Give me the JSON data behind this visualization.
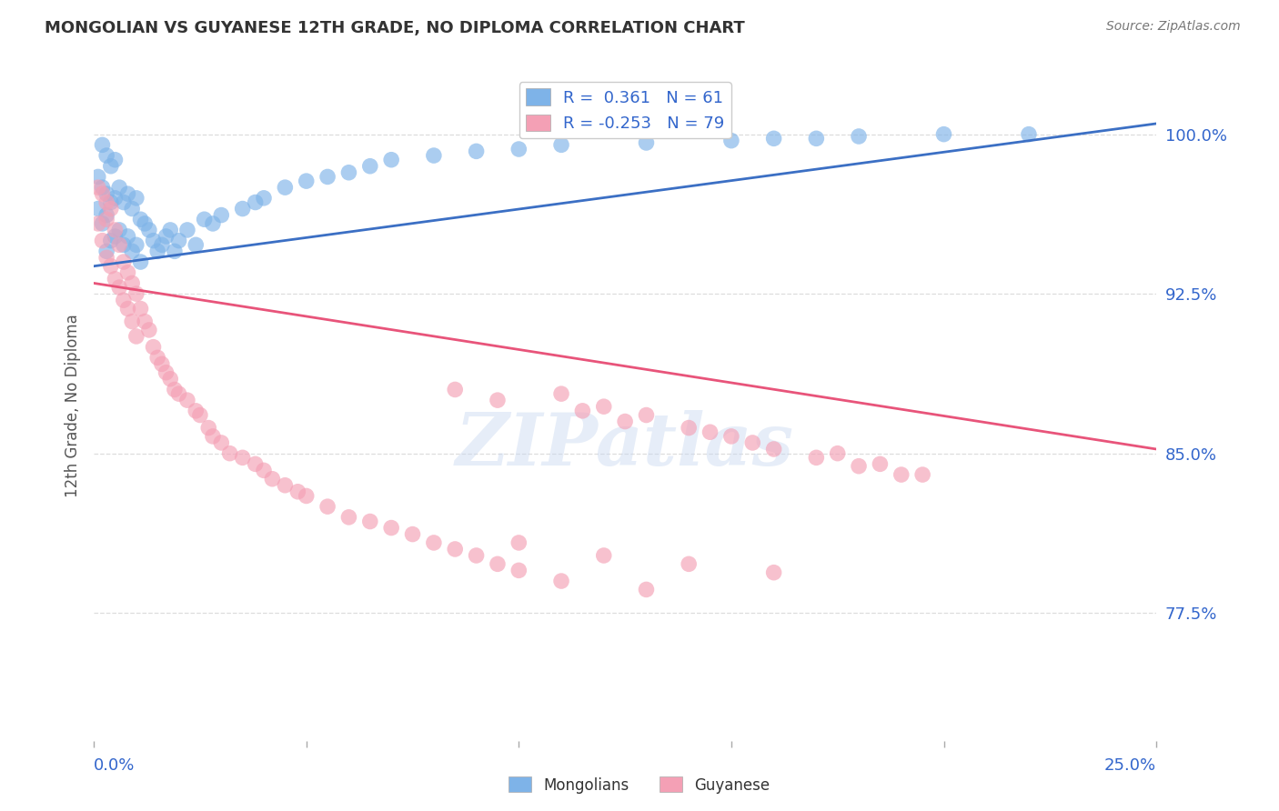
{
  "title": "MONGOLIAN VS GUYANESE 12TH GRADE, NO DIPLOMA CORRELATION CHART",
  "source": "Source: ZipAtlas.com",
  "ylabel": "12th Grade, No Diploma",
  "ytick_labels": [
    "100.0%",
    "92.5%",
    "85.0%",
    "77.5%"
  ],
  "ytick_values": [
    1.0,
    0.925,
    0.85,
    0.775
  ],
  "xlim": [
    0.0,
    0.25
  ],
  "ylim": [
    0.715,
    1.03
  ],
  "r_mongolian": 0.361,
  "n_mongolian": 61,
  "r_guyanese": -0.253,
  "n_guyanese": 79,
  "mongolian_color": "#7EB3E8",
  "guyanese_color": "#F4A0B5",
  "trend_mongolian_color": "#3B6FC4",
  "trend_guyanese_color": "#E8547A",
  "mongolian_x": [
    0.001,
    0.001,
    0.002,
    0.002,
    0.002,
    0.003,
    0.003,
    0.003,
    0.003,
    0.004,
    0.004,
    0.004,
    0.005,
    0.005,
    0.005,
    0.006,
    0.006,
    0.007,
    0.007,
    0.008,
    0.008,
    0.009,
    0.009,
    0.01,
    0.01,
    0.011,
    0.011,
    0.012,
    0.013,
    0.014,
    0.015,
    0.016,
    0.017,
    0.018,
    0.019,
    0.02,
    0.022,
    0.024,
    0.026,
    0.028,
    0.03,
    0.035,
    0.038,
    0.04,
    0.045,
    0.05,
    0.055,
    0.06,
    0.065,
    0.07,
    0.08,
    0.09,
    0.1,
    0.11,
    0.13,
    0.15,
    0.16,
    0.17,
    0.18,
    0.2,
    0.22
  ],
  "mongolian_y": [
    0.98,
    0.965,
    0.995,
    0.975,
    0.958,
    0.99,
    0.972,
    0.962,
    0.945,
    0.985,
    0.968,
    0.95,
    0.988,
    0.97,
    0.952,
    0.975,
    0.955,
    0.968,
    0.948,
    0.972,
    0.952,
    0.965,
    0.945,
    0.97,
    0.948,
    0.96,
    0.94,
    0.958,
    0.955,
    0.95,
    0.945,
    0.948,
    0.952,
    0.955,
    0.945,
    0.95,
    0.955,
    0.948,
    0.96,
    0.958,
    0.962,
    0.965,
    0.968,
    0.97,
    0.975,
    0.978,
    0.98,
    0.982,
    0.985,
    0.988,
    0.99,
    0.992,
    0.993,
    0.995,
    0.996,
    0.997,
    0.998,
    0.998,
    0.999,
    1.0,
    1.0
  ],
  "guyanese_x": [
    0.001,
    0.001,
    0.002,
    0.002,
    0.003,
    0.003,
    0.003,
    0.004,
    0.004,
    0.005,
    0.005,
    0.006,
    0.006,
    0.007,
    0.007,
    0.008,
    0.008,
    0.009,
    0.009,
    0.01,
    0.01,
    0.011,
    0.012,
    0.013,
    0.014,
    0.015,
    0.016,
    0.017,
    0.018,
    0.019,
    0.02,
    0.022,
    0.024,
    0.025,
    0.027,
    0.028,
    0.03,
    0.032,
    0.035,
    0.038,
    0.04,
    0.042,
    0.045,
    0.048,
    0.05,
    0.055,
    0.06,
    0.065,
    0.07,
    0.075,
    0.08,
    0.085,
    0.09,
    0.095,
    0.1,
    0.11,
    0.12,
    0.13,
    0.14,
    0.15,
    0.16,
    0.17,
    0.18,
    0.19,
    0.1,
    0.12,
    0.14,
    0.16,
    0.11,
    0.13,
    0.085,
    0.095,
    0.115,
    0.125,
    0.145,
    0.155,
    0.175,
    0.185,
    0.195
  ],
  "guyanese_y": [
    0.975,
    0.958,
    0.972,
    0.95,
    0.968,
    0.942,
    0.96,
    0.965,
    0.938,
    0.955,
    0.932,
    0.948,
    0.928,
    0.94,
    0.922,
    0.935,
    0.918,
    0.93,
    0.912,
    0.925,
    0.905,
    0.918,
    0.912,
    0.908,
    0.9,
    0.895,
    0.892,
    0.888,
    0.885,
    0.88,
    0.878,
    0.875,
    0.87,
    0.868,
    0.862,
    0.858,
    0.855,
    0.85,
    0.848,
    0.845,
    0.842,
    0.838,
    0.835,
    0.832,
    0.83,
    0.825,
    0.82,
    0.818,
    0.815,
    0.812,
    0.808,
    0.805,
    0.802,
    0.798,
    0.795,
    0.878,
    0.872,
    0.868,
    0.862,
    0.858,
    0.852,
    0.848,
    0.844,
    0.84,
    0.808,
    0.802,
    0.798,
    0.794,
    0.79,
    0.786,
    0.88,
    0.875,
    0.87,
    0.865,
    0.86,
    0.855,
    0.85,
    0.845,
    0.84
  ],
  "trend_mongolian_x0": 0.0,
  "trend_mongolian_x1": 0.25,
  "trend_mongolian_y0": 0.938,
  "trend_mongolian_y1": 1.005,
  "trend_guyanese_x0": 0.0,
  "trend_guyanese_x1": 0.25,
  "trend_guyanese_y0": 0.93,
  "trend_guyanese_y1": 0.852,
  "watermark_text": "ZIPatlas",
  "background_color": "#FFFFFF",
  "grid_color": "#DDDDDD"
}
